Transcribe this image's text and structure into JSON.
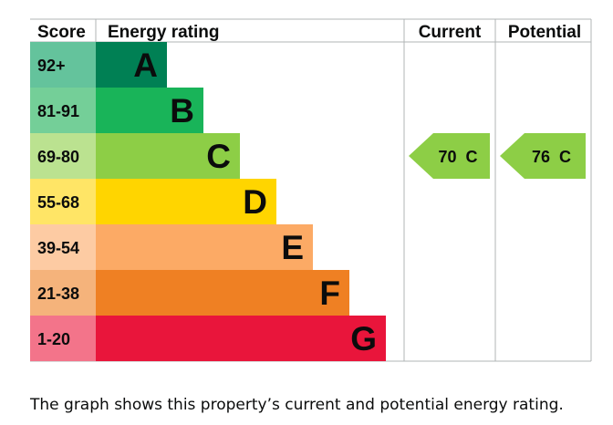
{
  "chart_data": {
    "type": "bar",
    "headers": {
      "score": "Score",
      "rating": "Energy rating",
      "current": "Current",
      "potential": "Potential"
    },
    "bands": [
      {
        "letter": "A",
        "score_range": "92+",
        "color": "#008054",
        "score_bg": "#64c39c"
      },
      {
        "letter": "B",
        "score_range": "81-91",
        "color": "#19b459",
        "score_bg": "#74cf98"
      },
      {
        "letter": "C",
        "score_range": "69-80",
        "color": "#8dce46",
        "score_bg": "#bbe290"
      },
      {
        "letter": "D",
        "score_range": "55-68",
        "color": "#ffd500",
        "score_bg": "#ffe566"
      },
      {
        "letter": "E",
        "score_range": "39-54",
        "color": "#fcaa65",
        "score_bg": "#fdcba3"
      },
      {
        "letter": "F",
        "score_range": "21-38",
        "color": "#ef8023",
        "score_bg": "#f5b37b"
      },
      {
        "letter": "G",
        "score_range": "1-20",
        "color": "#e9153b",
        "score_bg": "#f3748a"
      }
    ],
    "current": {
      "value": 70,
      "band": "C",
      "label": "70  C",
      "color": "#8dce46"
    },
    "potential": {
      "value": 76,
      "band": "C",
      "label": "76  C",
      "color": "#8dce46"
    }
  },
  "caption": "The graph shows this property’s current and potential energy rating."
}
